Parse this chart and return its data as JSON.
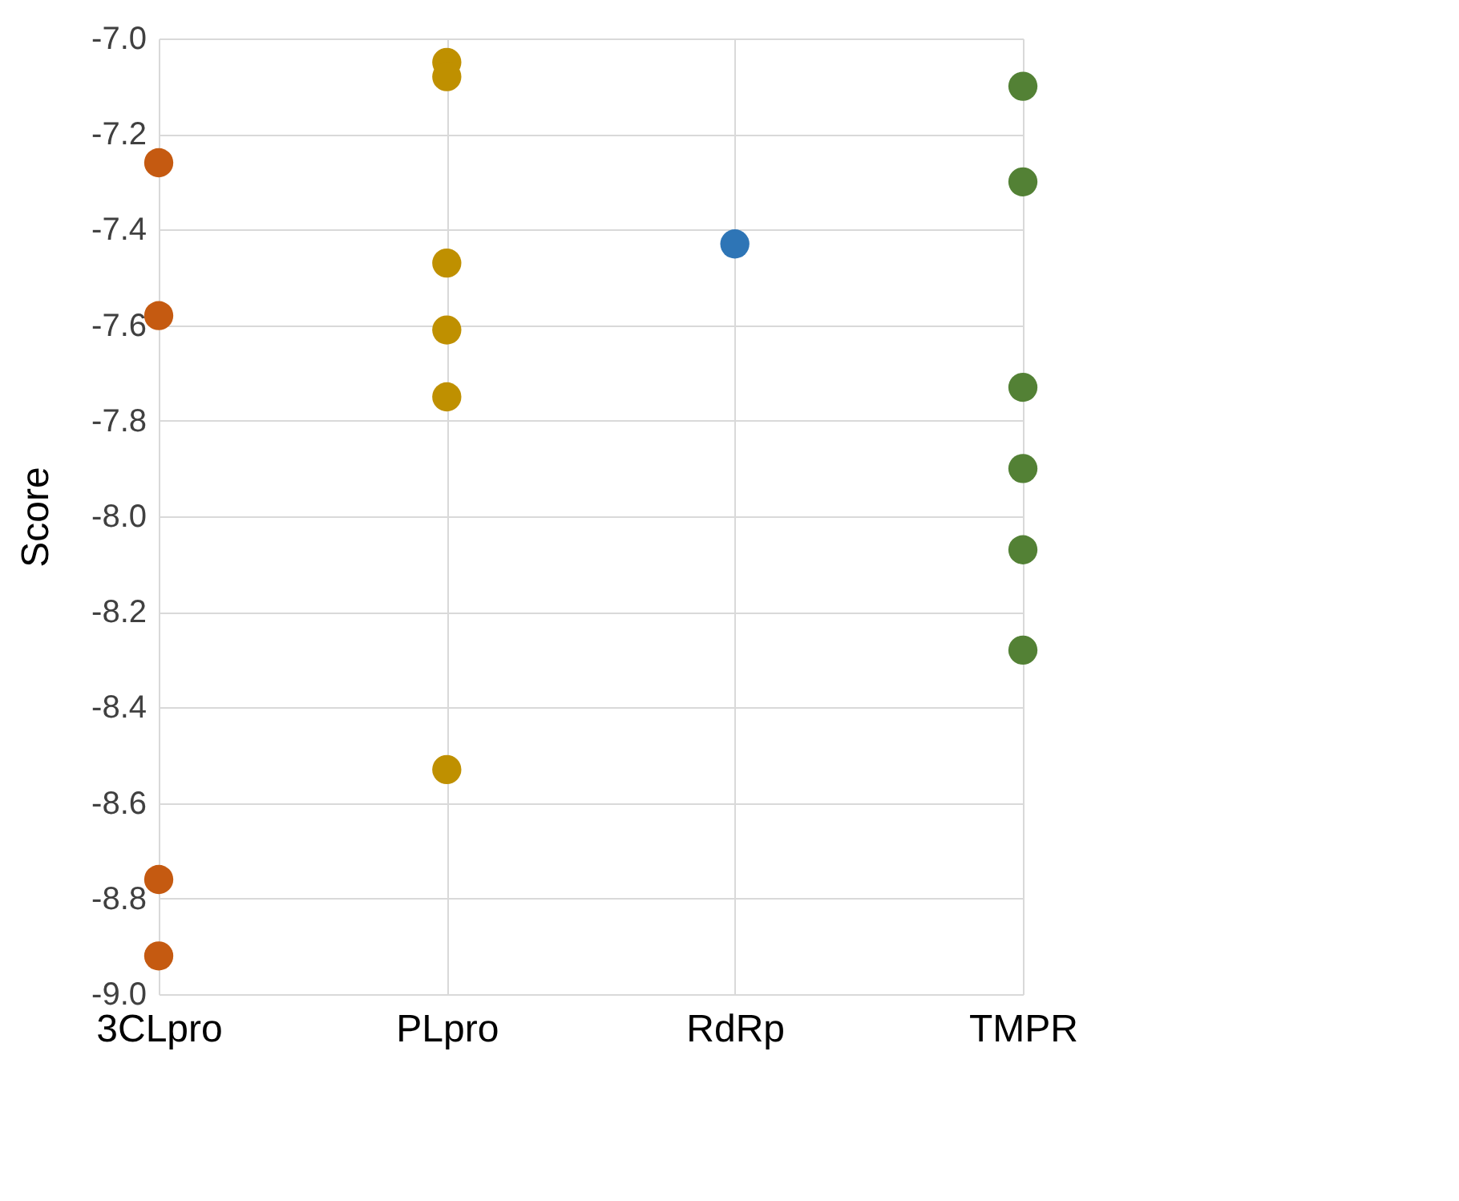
{
  "chart_data": {
    "type": "scatter",
    "ylabel": "Score",
    "categories": [
      "3CLpro",
      "PLpro",
      "RdRp",
      "TMPR"
    ],
    "series": [
      {
        "color": "#c55a11",
        "x": [
          "3CLpro",
          "3CLpro",
          "3CLpro",
          "3CLpro"
        ],
        "values": [
          -7.26,
          -7.58,
          -8.76,
          -8.92
        ]
      },
      {
        "color": "#bf9000",
        "x": [
          "PLpro",
          "PLpro",
          "PLpro",
          "PLpro",
          "PLpro",
          "PLpro"
        ],
        "values": [
          -7.05,
          -7.08,
          -7.47,
          -7.61,
          -7.75,
          -8.53
        ]
      },
      {
        "color": "#2e75b6",
        "x": [
          "RdRp"
        ],
        "values": [
          -7.43
        ]
      },
      {
        "color": "#538135",
        "x": [
          "TMPR",
          "TMPR",
          "TMPR",
          "TMPR",
          "TMPR",
          "TMPR"
        ],
        "values": [
          -7.1,
          -7.3,
          -7.73,
          -7.9,
          -8.07,
          -8.28
        ]
      }
    ],
    "ylim": [
      -9.0,
      -7.0
    ],
    "yticks": [
      {
        "value": -9,
        "label": "-9.0"
      },
      {
        "value": -8.8,
        "label": "-8.8"
      },
      {
        "value": -8.6,
        "label": "-8.6"
      },
      {
        "value": -8.4,
        "label": "-8.4"
      },
      {
        "value": -8.2,
        "label": "-8.2"
      },
      {
        "value": -8,
        "label": "-8.0"
      },
      {
        "value": -7.8,
        "label": "-7.8"
      },
      {
        "value": -7.6,
        "label": "-7.6"
      },
      {
        "value": -7.4,
        "label": "-7.4"
      },
      {
        "value": -7.2,
        "label": "-7.2"
      },
      {
        "value": -7,
        "label": "-7.0"
      }
    ],
    "grid": true,
    "marker": "circle"
  }
}
